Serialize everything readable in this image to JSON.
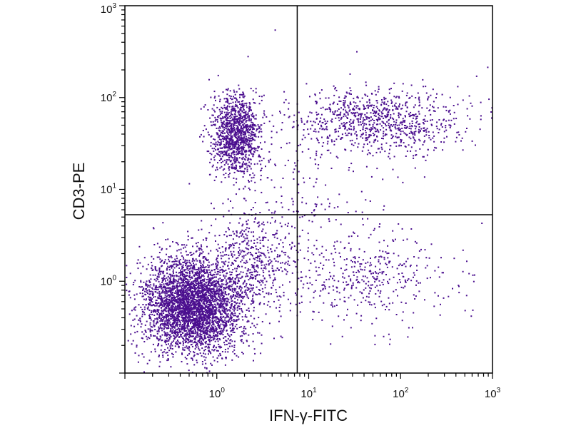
{
  "chart_data": {
    "type": "scatter",
    "title": "",
    "xlabel": "IFN-γ-FITC",
    "ylabel": "CD3-PE",
    "xscale": "log",
    "yscale": "log",
    "xlim": [
      0.1,
      1000
    ],
    "ylim": [
      0.1,
      1000
    ],
    "x_ticks": [
      {
        "base": "10",
        "exp": "0",
        "value": 1
      },
      {
        "base": "10",
        "exp": "1",
        "value": 10
      },
      {
        "base": "10",
        "exp": "2",
        "value": 100
      },
      {
        "base": "10",
        "exp": "3",
        "value": 1000
      }
    ],
    "y_ticks": [
      {
        "base": "10",
        "exp": "0",
        "value": 1
      },
      {
        "base": "10",
        "exp": "1",
        "value": 10
      },
      {
        "base": "10",
        "exp": "2",
        "value": 100
      },
      {
        "base": "10",
        "exp": "3",
        "value": 1000
      }
    ],
    "gate": {
      "x": 7.5,
      "y": 5.3
    },
    "point_color": "#4b0f8f",
    "grid": false,
    "legend": "none",
    "populations": [
      {
        "x_center": 0.55,
        "y_center": 0.55,
        "x_spread_decades": 0.28,
        "y_spread_decades": 0.26,
        "count": 3800
      },
      {
        "x_center": 1.6,
        "y_center": 40,
        "x_spread_decades": 0.13,
        "y_spread_decades": 0.22,
        "count": 1200
      },
      {
        "x_center": 60,
        "y_center": 55,
        "x_spread_decades": 0.45,
        "y_spread_decades": 0.18,
        "count": 900
      },
      {
        "x_center": 40,
        "y_center": 1.1,
        "x_spread_decades": 0.45,
        "y_spread_decades": 0.25,
        "count": 420
      },
      {
        "x_center": 2.5,
        "y_center": 1.8,
        "x_spread_decades": 0.25,
        "y_spread_decades": 0.3,
        "count": 500
      },
      {
        "x_center": 12,
        "y_center": 12,
        "x_spread_decades": 0.5,
        "y_spread_decades": 0.5,
        "count": 180
      }
    ]
  }
}
